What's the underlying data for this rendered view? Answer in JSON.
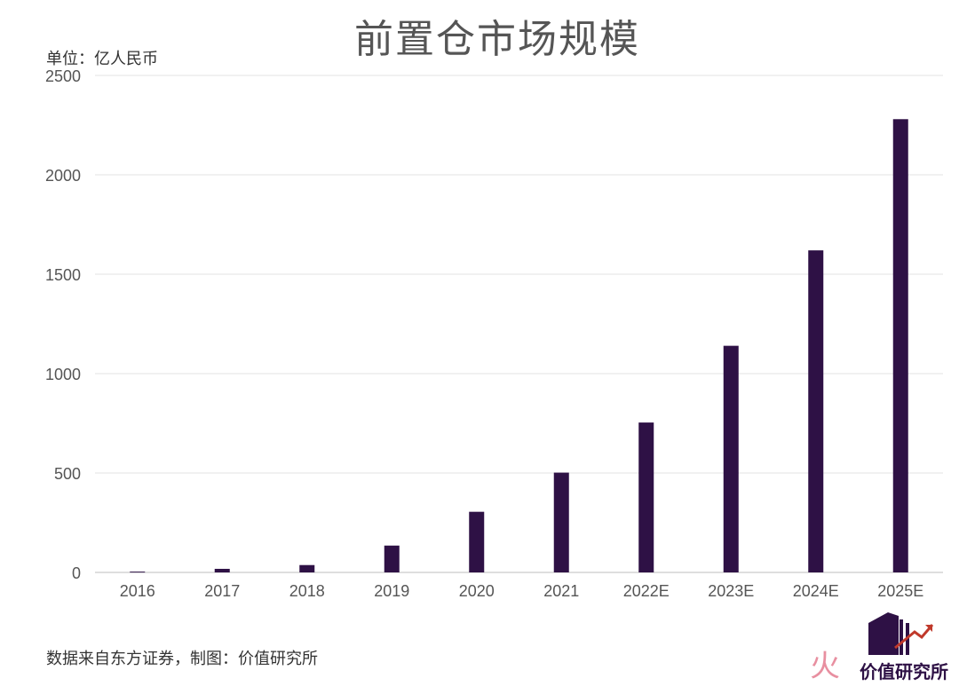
{
  "chart_data": {
    "type": "bar",
    "title": "前置仓市场规模",
    "unit_label": "单位：亿人民币",
    "source": "数据来自东方证券，制图：价值研究所",
    "categories": [
      "2016",
      "2017",
      "2018",
      "2019",
      "2020",
      "2021",
      "2022E",
      "2023E",
      "2024E",
      "2025E"
    ],
    "values": [
      4,
      18,
      37,
      135,
      305,
      502,
      754,
      1140,
      1620,
      2280
    ],
    "y_ticks": [
      "0",
      "500",
      "1000",
      "1500",
      "2000",
      "2500"
    ],
    "ylim": [
      0,
      2500
    ],
    "grid": true,
    "bar_color": "#2e1145",
    "watermark": "价值研究所"
  }
}
